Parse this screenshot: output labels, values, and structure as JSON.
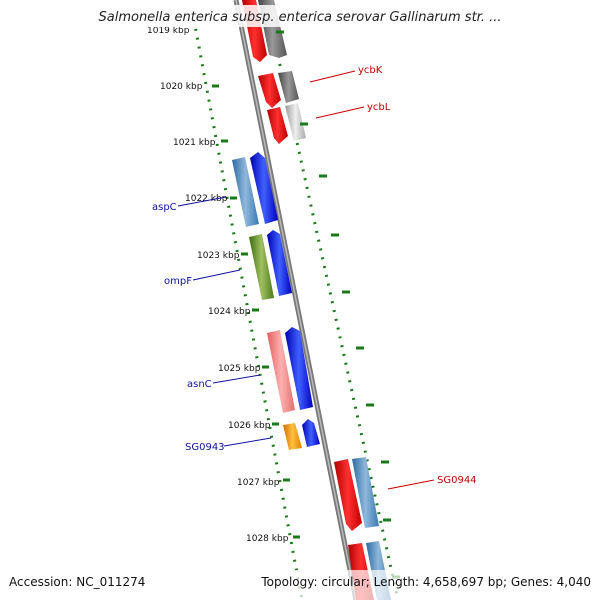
{
  "title": "Salmonella enterica subsp. enterica serovar Gallinarum str. ...",
  "footer": {
    "accession": "Accession: NC_011274",
    "topology": "Topology: circular; Length: 4,658,697 bp; Genes: 4,040"
  },
  "axis": {
    "unit": "kbp",
    "ticks": [
      {
        "value": 1019,
        "label": "1019 kbp"
      },
      {
        "value": 1020,
        "label": "1020 kbp"
      },
      {
        "value": 1021,
        "label": "1021 kbp"
      },
      {
        "value": 1022,
        "label": "1022 kbp"
      },
      {
        "value": 1023,
        "label": "1023 kbp"
      },
      {
        "value": 1024,
        "label": "1024 kbp"
      },
      {
        "value": 1025,
        "label": "1025 kbp"
      },
      {
        "value": 1026,
        "label": "1026 kbp"
      },
      {
        "value": 1027,
        "label": "1027 kbp"
      },
      {
        "value": 1028,
        "label": "1028 kbp"
      }
    ]
  },
  "genes": [
    {
      "name": "ycbK",
      "side": "right",
      "color": "#cc0000"
    },
    {
      "name": "ycbL",
      "side": "right",
      "color": "#cc0000"
    },
    {
      "name": "aspC",
      "side": "left",
      "color": "#1010a0"
    },
    {
      "name": "ompF",
      "side": "left",
      "color": "#1010a0"
    },
    {
      "name": "asnC",
      "side": "left",
      "color": "#1010a0"
    },
    {
      "name": "SG0943",
      "side": "left",
      "color": "#1010a0"
    },
    {
      "name": "SG0944",
      "side": "right",
      "color": "#cc0000"
    }
  ],
  "colors": {
    "forward_strand": "#0000ff",
    "reverse_strand": "#ff0000",
    "tick_green": "#1a7a1a",
    "backbone": "#888888"
  }
}
